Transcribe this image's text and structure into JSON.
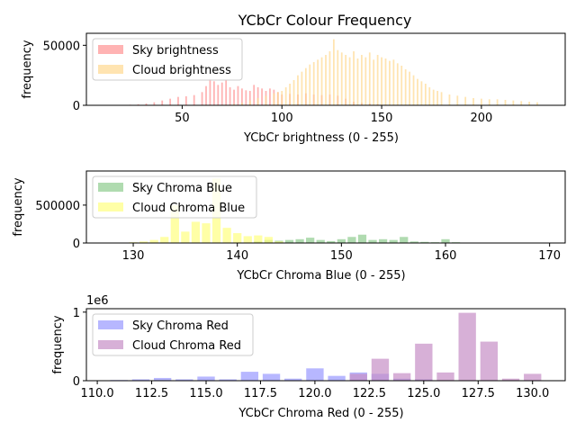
{
  "figure_title": "YCbCr Colour Frequency",
  "colors": {
    "sky_brightness": "#ff9999",
    "cloud_brightness": "#ffd990",
    "sky_blue": "#8fcc8f",
    "cloud_blue": "#ffff80",
    "sky_red": "#9999ff",
    "cloud_red": "#c68fc6"
  },
  "chart_data": [
    {
      "type": "bar",
      "title": "YCbCr Colour Frequency",
      "xlabel": "YCbCr brightness (0 - 255)",
      "ylabel": "frequency",
      "xlim": [
        2,
        242
      ],
      "ylim": [
        0,
        60000
      ],
      "xticks": [
        "50",
        "100",
        "150",
        "200"
      ],
      "yticks": [
        "0",
        "50000"
      ],
      "legend": "upper left",
      "series": [
        {
          "name": "Sky brightness",
          "x": [
            24,
            28,
            32,
            36,
            40,
            44,
            48,
            52,
            56,
            60,
            62,
            64,
            66,
            68,
            70,
            72,
            74,
            76,
            78,
            80,
            82,
            84,
            86,
            88,
            90,
            92,
            94,
            96,
            98,
            100,
            104,
            108,
            112,
            116,
            120,
            124,
            128,
            132,
            136,
            140,
            144,
            148,
            152,
            156,
            160
          ],
          "values": [
            500,
            800,
            1500,
            2500,
            4000,
            5500,
            7000,
            7500,
            8500,
            11000,
            16000,
            22000,
            20000,
            17000,
            19000,
            21000,
            15000,
            13000,
            16000,
            14000,
            12500,
            12000,
            17000,
            15000,
            14000,
            12000,
            14000,
            13000,
            11000,
            9000,
            9500,
            9000,
            10000,
            9000,
            8500,
            9000,
            8000,
            5500,
            3000,
            2000,
            1500,
            1000,
            500,
            300,
            200
          ]
        },
        {
          "name": "Cloud brightness",
          "x": [
            76,
            80,
            84,
            88,
            92,
            96,
            98,
            100,
            102,
            104,
            106,
            108,
            110,
            112,
            114,
            116,
            118,
            120,
            122,
            124,
            126,
            128,
            130,
            132,
            134,
            136,
            138,
            140,
            142,
            144,
            146,
            148,
            150,
            152,
            154,
            156,
            158,
            160,
            162,
            164,
            166,
            168,
            170,
            172,
            174,
            176,
            178,
            180,
            184,
            188,
            192,
            196,
            200,
            204,
            208,
            212,
            216,
            220,
            224,
            228
          ],
          "values": [
            1000,
            2000,
            4000,
            6000,
            8000,
            10000,
            11000,
            12000,
            15000,
            18000,
            21000,
            25000,
            28000,
            31000,
            34000,
            36000,
            38000,
            40000,
            42000,
            45000,
            55000,
            46000,
            44000,
            42000,
            40000,
            45000,
            39000,
            42000,
            40000,
            44000,
            38000,
            42000,
            40000,
            39000,
            37000,
            38000,
            35000,
            33000,
            30000,
            28000,
            25000,
            22000,
            20000,
            18000,
            15000,
            13000,
            12000,
            11000,
            9000,
            8000,
            7000,
            6000,
            5500,
            5000,
            5000,
            4500,
            4000,
            3500,
            3000,
            2500
          ]
        }
      ]
    },
    {
      "type": "bar",
      "xlabel": "YCbCr Chroma Blue (0 - 255)",
      "ylabel": "frequency",
      "xlim": [
        125.5,
        171.5
      ],
      "ylim": [
        0,
        950000
      ],
      "xticks": [
        "130",
        "140",
        "150",
        "160",
        "170"
      ],
      "yticks": [
        "0",
        "500000"
      ],
      "legend": "upper left",
      "series": [
        {
          "name": "Sky Chroma Blue",
          "x": [
            142,
            143,
            144,
            145,
            146,
            147,
            148,
            149,
            150,
            151,
            152,
            153,
            154,
            155,
            156,
            157,
            158,
            159,
            160,
            161,
            162
          ],
          "values": [
            20000,
            40000,
            30000,
            40000,
            50000,
            70000,
            40000,
            25000,
            50000,
            80000,
            110000,
            40000,
            50000,
            40000,
            80000,
            20000,
            15000,
            10000,
            50000,
            10000,
            5000
          ]
        },
        {
          "name": "Cloud Chroma Blue",
          "x": [
            130,
            131,
            132,
            133,
            134,
            135,
            136,
            137,
            138,
            139,
            140,
            141,
            142,
            143,
            144
          ],
          "values": [
            10000,
            20000,
            40000,
            80000,
            500000,
            150000,
            280000,
            260000,
            850000,
            200000,
            130000,
            90000,
            100000,
            80000,
            20000
          ]
        }
      ]
    },
    {
      "type": "bar",
      "xlabel": "YCbCr Chroma Red (0 - 255)",
      "ylabel": "frequency",
      "ylabel_offset": "1e6",
      "xlim": [
        109.5,
        131.5
      ],
      "ylim": [
        0,
        1.05
      ],
      "xticks": [
        "110.0",
        "112.5",
        "115.0",
        "117.5",
        "120.0",
        "122.5",
        "125.0",
        "127.5",
        "130.0"
      ],
      "yticks": [
        "0",
        "1"
      ],
      "legend": "upper left",
      "series": [
        {
          "name": "Sky Chroma Red",
          "x": [
            111,
            112,
            113,
            114,
            115,
            116,
            117,
            118,
            119,
            120,
            121,
            122,
            123,
            124,
            125
          ],
          "values": [
            0.01,
            0.02,
            0.04,
            0.02,
            0.06,
            0.02,
            0.13,
            0.1,
            0.03,
            0.18,
            0.07,
            0.12,
            0.1,
            0.03,
            0.02
          ]
        },
        {
          "name": "Cloud Chroma Red",
          "x": [
            122,
            123,
            124,
            125,
            126,
            127,
            128,
            129,
            130
          ],
          "values": [
            0.1,
            0.32,
            0.11,
            0.54,
            0.12,
            0.99,
            0.57,
            0.03,
            0.1
          ]
        }
      ]
    }
  ]
}
